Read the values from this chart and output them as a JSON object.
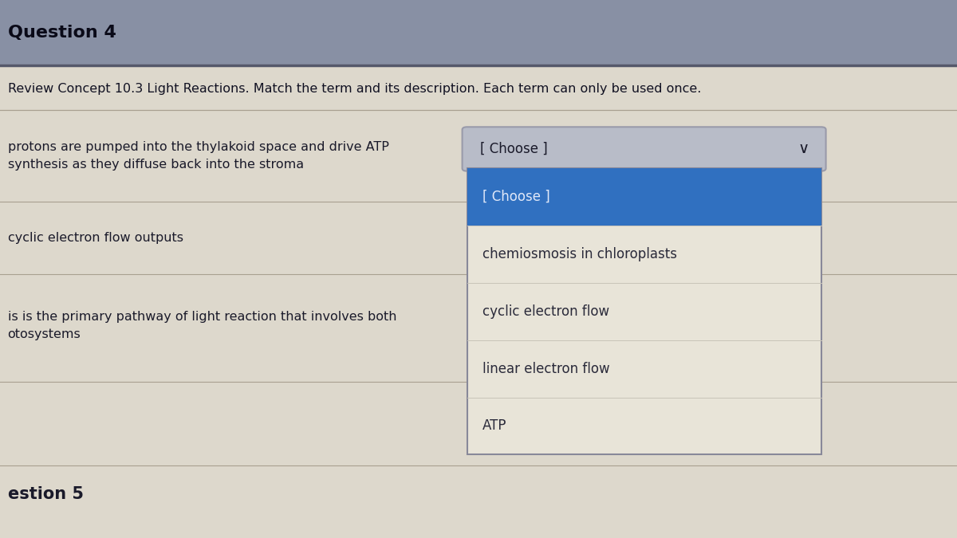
{
  "title": "Question 4",
  "subtitle": "Review Concept 10.3 Light Reactions. Match the term and its description. Each term can only be used once.",
  "bg_color": "#d8d0c0",
  "title_bar_color": "#8890a4",
  "body_bg_color": "#ddd8cc",
  "row_descriptions": [
    "protons are pumped into the thylakoid space and drive ATP\nsynthesis as they diffuse back into the stroma",
    "cyclic electron flow outputs",
    "is is the primary pathway of light reaction that involves both\notosystems"
  ],
  "dropdown_label": "[ Choose ]",
  "dropdown_items": [
    "[ Choose ]",
    "chemiosmosis in chloroplasts",
    "cyclic electron flow",
    "linear electron flow",
    "ATP"
  ],
  "dropdown_highlight_item": "[ Choose ]",
  "dropdown_bg_closed": "#b8bcc8",
  "dropdown_bg_open": "#e8e4d8",
  "dropdown_highlight_bg": "#3070c0",
  "dropdown_highlight_text": "#e0e8f8",
  "dropdown_text": "#2a2a3a",
  "dropdown_border": "#888899",
  "chevron": "✓",
  "footer_text": "estion 5",
  "row_line_color": "#a8a090",
  "text_color": "#1a1a2a",
  "title_text_color": "#0a0a18",
  "subtitle_text_color": "#111122"
}
